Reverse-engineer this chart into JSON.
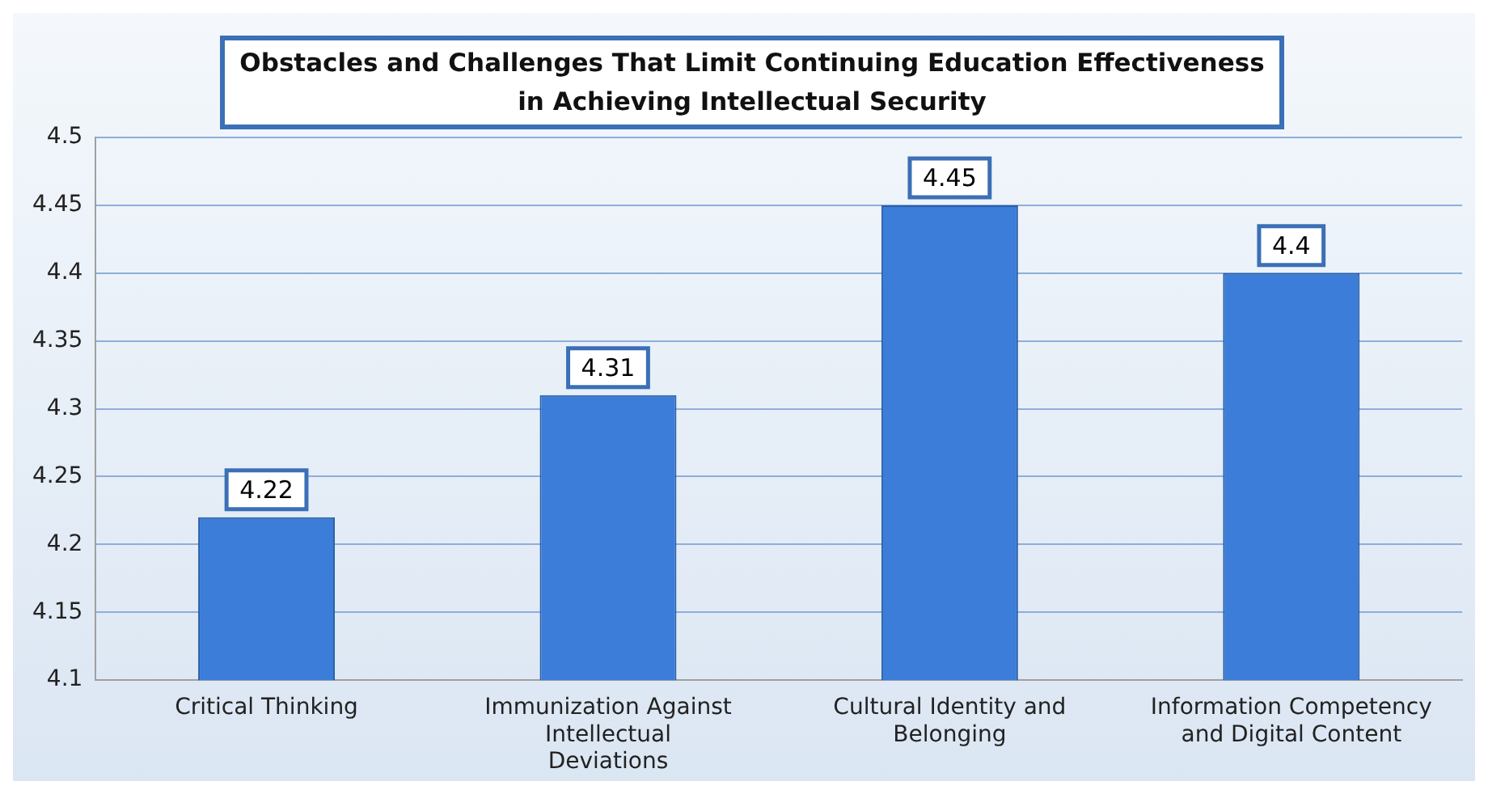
{
  "chart_data": {
    "type": "bar",
    "title": "Obstacles and Challenges That Limit Continuing Education Effectiveness in Achieving Intellectual Security",
    "categories": [
      "Critical Thinking",
      "Immunization Against Intellectual Deviations",
      "Cultural Identity and Belonging",
      "Information Competency and Digital Content"
    ],
    "values": [
      4.22,
      4.31,
      4.45,
      4.4
    ],
    "color": "#3b7dd8",
    "ylim": [
      4.1,
      4.5
    ],
    "yticks": [
      4.1,
      4.15,
      4.2,
      4.25,
      4.3,
      4.35,
      4.4,
      4.45,
      4.5
    ],
    "grid": "y",
    "data_labels": true,
    "legend": false
  }
}
